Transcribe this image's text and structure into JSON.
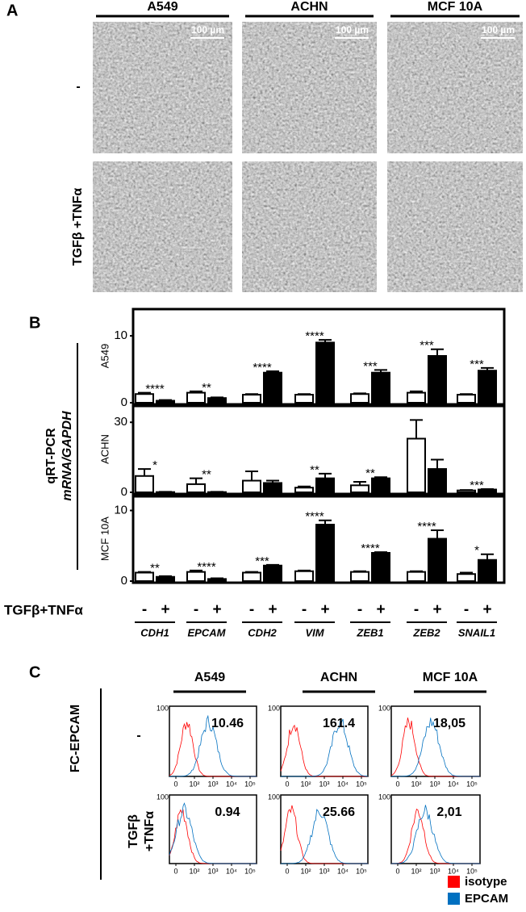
{
  "panel_a": {
    "letter": "A",
    "columns": [
      "A549",
      "ACHN",
      "MCF 10A"
    ],
    "rows": [
      "-",
      "TGFβ +TNFα"
    ],
    "scale_bar": "100 µm"
  },
  "panel_b": {
    "letter": "B",
    "ylabel_1": "qRT-PCR",
    "ylabel_2": "mRNA/GAPDH",
    "treatment_label": "TGFβ+TNFα"
  },
  "chart_data": [
    {
      "type": "bar",
      "ylabel": "A549",
      "categories": [
        "CDH1",
        "EPCAM",
        "CDH2",
        "VIM",
        "ZEB1",
        "ZEB2",
        "SNAIL1"
      ],
      "series": [
        {
          "name": "-",
          "color": "#ffffff",
          "values": [
            1.3,
            1.5,
            1.2,
            1.2,
            1.3,
            1.5,
            1.2
          ],
          "errors": [
            0.2,
            0.2,
            0.1,
            0.1,
            0.1,
            0.2,
            0.1
          ]
        },
        {
          "name": "+",
          "color": "#000000",
          "values": [
            0.3,
            0.7,
            4.5,
            9,
            4.5,
            7,
            4.8
          ],
          "errors": [
            0.1,
            0.1,
            0.2,
            0.4,
            0.4,
            1,
            0.4
          ]
        }
      ],
      "annotations": [
        "****",
        "**",
        "****",
        "****",
        "***",
        "***",
        "***"
      ],
      "ylim": [
        0,
        14
      ],
      "yticks": [
        0,
        10
      ]
    },
    {
      "type": "bar",
      "ylabel": "ACHN",
      "categories": [
        "CDH1",
        "EPCAM",
        "CDH2",
        "VIM",
        "ZEB1",
        "ZEB2",
        "SNAIL1"
      ],
      "series": [
        {
          "name": "-",
          "color": "#ffffff",
          "values": [
            7,
            3.5,
            5,
            2,
            3,
            23,
            0.8
          ],
          "errors": [
            3,
            2.5,
            4,
            0.5,
            1.5,
            8,
            0.2
          ]
        },
        {
          "name": "+",
          "color": "#000000",
          "values": [
            0.1,
            0.1,
            4,
            6,
            6,
            10,
            1.2
          ],
          "errors": [
            0.1,
            0.1,
            1,
            2,
            0.5,
            4,
            0.2
          ]
        }
      ],
      "annotations": [
        "*",
        "**",
        null,
        "**",
        "**",
        null,
        "***"
      ],
      "ylim": [
        0,
        37
      ],
      "yticks": [
        0,
        30
      ]
    },
    {
      "type": "bar",
      "ylabel": "MCF 10A",
      "categories": [
        "CDH1",
        "EPCAM",
        "CDH2",
        "VIM",
        "ZEB1",
        "ZEB2",
        "SNAIL1"
      ],
      "series": [
        {
          "name": "-",
          "color": "#ffffff",
          "values": [
            1.2,
            1.3,
            1.2,
            1.4,
            1.3,
            1.3,
            1
          ],
          "errors": [
            0.1,
            0.2,
            0.1,
            0.1,
            0.1,
            0.1,
            0.2
          ]
        },
        {
          "name": "+",
          "color": "#000000",
          "values": [
            0.6,
            0.3,
            2.2,
            8,
            4,
            6,
            3
          ],
          "errors": [
            0.1,
            0.1,
            0.1,
            0.6,
            0.1,
            1.2,
            0.8
          ]
        }
      ],
      "annotations": [
        "**",
        "****",
        "***",
        "****",
        "****",
        "****",
        "*"
      ],
      "ylim": [
        0,
        12
      ],
      "yticks": [
        0,
        10
      ]
    }
  ],
  "panel_c": {
    "letter": "C",
    "columns": [
      "A549",
      "ACHN",
      "MCF 10A"
    ],
    "ylabel": "FC-EPCAM",
    "row_1": "-",
    "row_2_line_1": "TGFβ",
    "row_2_line_2": "+TNFα",
    "values": [
      [
        "10.46",
        "161.4",
        "18,05"
      ],
      [
        "0.94",
        "25.66",
        "2,01"
      ]
    ],
    "axis_ticks": [
      "0",
      "10²",
      "10³",
      "10⁴",
      "10⁵"
    ],
    "y_max": "100",
    "legend": [
      {
        "name": "isotype",
        "color": "#ff0000"
      },
      {
        "name": "EPCAM",
        "color": "#0070c0"
      }
    ]
  }
}
